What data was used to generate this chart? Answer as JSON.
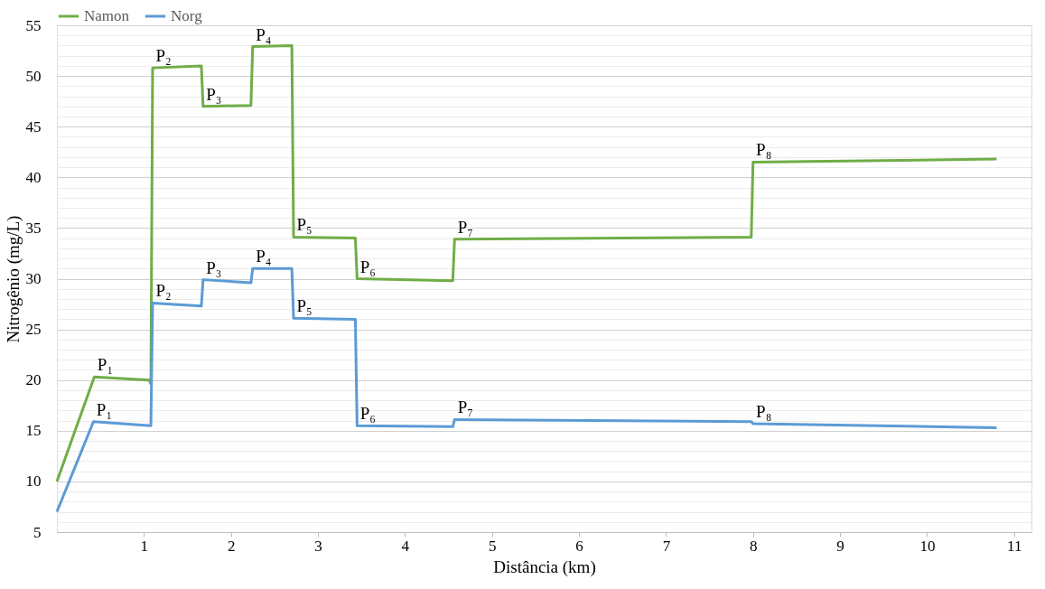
{
  "chart_data": {
    "type": "line",
    "xlabel": "Distância (km)",
    "ylabel": "Nitrogênio (mg/L)",
    "xlim": [
      0,
      11.2
    ],
    "xticks": [
      1,
      2,
      3,
      4,
      5,
      6,
      7,
      8,
      9,
      10,
      11
    ],
    "ylim": [
      5,
      55
    ],
    "yticks": [
      5,
      {
        "value": 6,
        "label": null
      },
      {
        "value": 7,
        "label": null
      },
      {
        "value": 8,
        "label": null
      },
      {
        "value": 9,
        "label": null
      },
      10,
      {
        "value": 11,
        "label": null
      },
      {
        "value": 12,
        "label": null
      },
      {
        "value": 13,
        "label": null
      },
      {
        "value": 14,
        "label": null
      },
      15,
      {
        "value": 16,
        "label": null
      },
      {
        "value": 17,
        "label": null
      },
      {
        "value": 18,
        "label": null
      },
      {
        "value": 19,
        "label": null
      },
      20,
      {
        "value": 21,
        "label": null
      },
      {
        "value": 22,
        "label": null
      },
      {
        "value": 23,
        "label": null
      },
      {
        "value": 24,
        "label": null
      },
      25,
      {
        "value": 26,
        "label": null
      },
      {
        "value": 27,
        "label": null
      },
      {
        "value": 28,
        "label": null
      },
      {
        "value": 29,
        "label": null
      },
      30,
      {
        "value": 31,
        "label": null
      },
      {
        "value": 32,
        "label": null
      },
      {
        "value": 33,
        "label": null
      },
      {
        "value": 34,
        "label": null
      },
      35,
      {
        "value": 36,
        "label": null
      },
      {
        "value": 37,
        "label": null
      },
      {
        "value": 38,
        "label": null
      },
      {
        "value": 39,
        "label": null
      },
      40,
      {
        "value": 41,
        "label": null
      },
      {
        "value": 42,
        "label": null
      },
      {
        "value": 43,
        "label": null
      },
      {
        "value": 44,
        "label": null
      },
      45,
      {
        "value": 46,
        "label": null
      },
      {
        "value": 47,
        "label": null
      },
      {
        "value": 48,
        "label": null
      },
      {
        "value": 49,
        "label": null
      },
      50,
      {
        "value": 51,
        "label": null
      },
      {
        "value": 52,
        "label": null
      },
      {
        "value": 53,
        "label": null
      },
      {
        "value": 54,
        "label": null
      },
      55
    ],
    "grid": "y",
    "legend": "top",
    "marker": "none",
    "line_style": "solid",
    "series": [
      {
        "name": "Namon",
        "color": "#70ad47",
        "x": [
          0,
          0.43,
          1.06,
          1.08,
          1.1,
          1.66,
          1.68,
          2.23,
          2.25,
          2.7,
          2.72,
          3.43,
          3.45,
          4.55,
          4.57,
          7.98,
          8.0,
          10.8
        ],
        "values": [
          10.0,
          20.3,
          20.0,
          19.6,
          50.8,
          51.0,
          47.0,
          47.1,
          52.9,
          53.0,
          34.1,
          34.0,
          30.0,
          29.8,
          33.9,
          34.1,
          41.5,
          41.8
        ]
      },
      {
        "name": "Norg",
        "color": "#5b9bd5",
        "x": [
          0,
          0.42,
          1.08,
          1.1,
          1.66,
          1.68,
          2.23,
          2.25,
          2.7,
          2.72,
          3.43,
          3.45,
          4.55,
          4.57,
          7.98,
          8.0,
          10.8
        ],
        "values": [
          7.0,
          15.9,
          15.5,
          27.6,
          27.3,
          29.9,
          29.6,
          31.0,
          31.0,
          26.1,
          26.0,
          15.5,
          15.4,
          16.1,
          15.9,
          15.7,
          15.3
        ]
      }
    ],
    "annotations": [
      {
        "text": "P₁",
        "x": 0.43,
        "y": 20.3
      },
      {
        "text": "P₂",
        "x": 1.1,
        "y": 50.8
      },
      {
        "text": "P₃",
        "x": 1.68,
        "y": 47.0
      },
      {
        "text": "P₄",
        "x": 2.25,
        "y": 52.9
      },
      {
        "text": "P₅",
        "x": 2.72,
        "y": 34.1
      },
      {
        "text": "P₆",
        "x": 3.45,
        "y": 30.0
      },
      {
        "text": "P₇",
        "x": 4.57,
        "y": 33.9
      },
      {
        "text": "P₈",
        "x": 8.0,
        "y": 41.5
      },
      {
        "text": "P₁",
        "x": 0.42,
        "y": 15.9
      },
      {
        "text": "P₂",
        "x": 1.1,
        "y": 27.6
      },
      {
        "text": "P₃",
        "x": 1.68,
        "y": 29.9
      },
      {
        "text": "P₄",
        "x": 2.25,
        "y": 31.0
      },
      {
        "text": "P₅",
        "x": 2.72,
        "y": 26.1
      },
      {
        "text": "P₆",
        "x": 3.45,
        "y": 15.5
      },
      {
        "text": "P₇",
        "x": 4.57,
        "y": 16.1
      },
      {
        "text": "P₈",
        "x": 8.0,
        "y": 15.7
      }
    ]
  }
}
